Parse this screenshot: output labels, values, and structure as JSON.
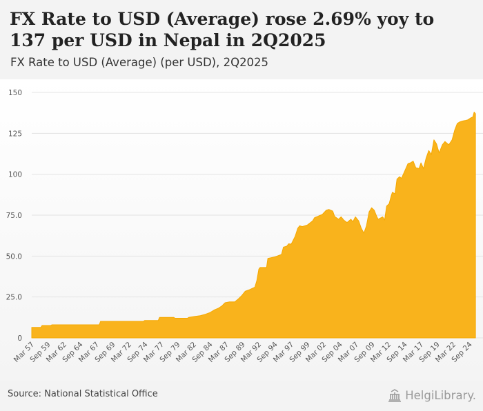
{
  "title": "FX Rate to USD (Average) rose 2.69% yoy to 137 per USD in Nepal in 2Q2025",
  "subtitle": "FX Rate to USD (Average) (per USD), 2Q2025",
  "source": "Source: National Statistical Office",
  "logo_text": "HelgiLibrary.",
  "colors": {
    "area": "#f9b31c",
    "area_stroke": "#f5a800",
    "grid": "#e3e3e3",
    "tick": "#555555"
  },
  "chart_data": {
    "type": "area",
    "title": "FX Rate to USD (Average) (per USD), 2Q2025",
    "xlabel": "",
    "ylabel": "",
    "ylim": [
      0,
      150
    ],
    "yticks": [
      0,
      25.0,
      50.0,
      75.0,
      100,
      125,
      150
    ],
    "ytick_labels": [
      "0",
      "25.0",
      "50.0",
      "75.0",
      "100",
      "125",
      "150"
    ],
    "xlim": [
      1957.0,
      2025.5
    ],
    "xtick_labels": [
      "Mar 57",
      "Sep 59",
      "Mar 62",
      "Sep 64",
      "Mar 67",
      "Sep 69",
      "Mar 72",
      "Sep 74",
      "Mar 77",
      "Sep 79",
      "Mar 82",
      "Sep 84",
      "Mar 87",
      "Sep 89",
      "Mar 92",
      "Sep 94",
      "Mar 97",
      "Sep 99",
      "Mar 02",
      "Sep 04",
      "Mar 07",
      "Sep 09",
      "Mar 12",
      "Sep 14",
      "Mar 17",
      "Sep 19",
      "Mar 22",
      "Sep 24"
    ],
    "xtick_positions": [
      1957.0,
      1959.5,
      1962.0,
      1964.5,
      1967.0,
      1969.5,
      1972.0,
      1974.5,
      1977.0,
      1979.5,
      1982.0,
      1984.5,
      1987.0,
      1989.5,
      1992.0,
      1994.5,
      1997.0,
      1999.5,
      2002.0,
      2004.5,
      2007.0,
      2009.5,
      2012.0,
      2014.5,
      2017.0,
      2019.5,
      2022.0,
      2024.5
    ],
    "series": [
      {
        "name": "FX Rate to USD (Average)",
        "x": [
          1957.0,
          1958.4,
          1958.6,
          1959.9,
          1960.1,
          1967.4,
          1967.6,
          1974.2,
          1974.4,
          1976.5,
          1976.7,
          1978.9,
          1979.1,
          1981.0,
          1981.2,
          1982.2,
          1983.0,
          1983.8,
          1984.5,
          1985.2,
          1985.8,
          1986.3,
          1986.8,
          1987.5,
          1988.3,
          1988.9,
          1989.4,
          1989.9,
          1990.6,
          1991.4,
          1991.7,
          1992.0,
          1992.2,
          1993.2,
          1993.4,
          1994.5,
          1995.5,
          1995.8,
          1996.3,
          1996.6,
          1997.0,
          1997.6,
          1998.0,
          1998.3,
          1998.7,
          1999.5,
          2000.3,
          2000.6,
          2001.1,
          2001.8,
          2002.4,
          2002.8,
          2003.4,
          2003.7,
          2004.3,
          2004.7,
          2005.1,
          2005.6,
          2006.2,
          2006.5,
          2006.9,
          2007.4,
          2007.8,
          2008.2,
          2008.6,
          2009.0,
          2009.4,
          2009.8,
          2010.2,
          2010.4,
          2011.1,
          2011.4,
          2011.7,
          2012.1,
          2012.4,
          2012.6,
          2013.0,
          2013.3,
          2013.7,
          2014.0,
          2014.5,
          2015.0,
          2015.4,
          2015.8,
          2016.2,
          2016.7,
          2017.0,
          2017.4,
          2017.8,
          2018.2,
          2018.6,
          2019.0,
          2019.4,
          2019.8,
          2020.3,
          2020.7,
          2021.0,
          2021.3,
          2021.8,
          2022.2,
          2022.6,
          2023.0,
          2023.4,
          2023.8,
          2024.2,
          2024.7,
          2025.0,
          2025.2,
          2025.4
        ],
        "values": [
          6.4,
          6.4,
          7.6,
          7.6,
          8.0,
          8.0,
          10.1,
          10.1,
          10.6,
          10.6,
          12.5,
          12.5,
          12.0,
          12.0,
          12.5,
          13.2,
          13.6,
          14.5,
          15.5,
          17.2,
          18.2,
          19.5,
          21.5,
          22.0,
          22.0,
          24.0,
          26.0,
          28.5,
          29.5,
          31.0,
          35.0,
          42.0,
          43.0,
          43.0,
          48.6,
          49.5,
          51.0,
          55.5,
          56.0,
          57.5,
          57.3,
          62.0,
          67.0,
          68.5,
          68.0,
          69.0,
          71.5,
          73.5,
          74.3,
          75.5,
          78.0,
          78.5,
          77.5,
          74.2,
          72.5,
          74.0,
          72.0,
          70.5,
          72.5,
          71.0,
          74.0,
          71.5,
          67.0,
          64.0,
          68.5,
          77.0,
          79.5,
          78.0,
          74.0,
          72.5,
          74.0,
          72.0,
          80.5,
          82.0,
          86.5,
          89.0,
          88.0,
          97.0,
          98.5,
          97.5,
          102.0,
          106.5,
          107.0,
          108.0,
          104.0,
          103.5,
          107.0,
          103.5,
          110.0,
          114.5,
          112.0,
          121.0,
          118.5,
          113.0,
          118.0,
          120.0,
          119.0,
          118.0,
          121.0,
          127.0,
          131.0,
          132.0,
          132.5,
          132.8,
          133.2,
          134.5,
          135.0,
          138.0,
          137.0
        ]
      }
    ]
  }
}
